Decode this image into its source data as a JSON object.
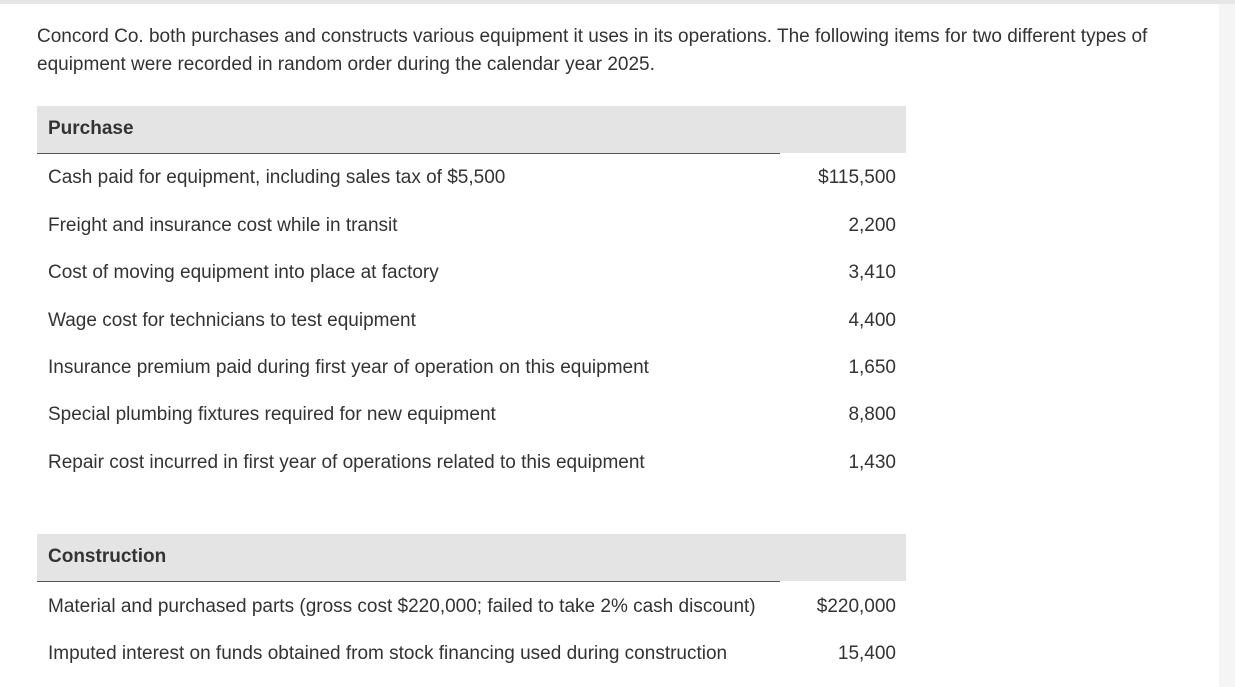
{
  "intro_text": "Concord Co. both purchases and constructs various equipment it uses in its operations. The following items for two different types of equipment were recorded in random order during the calendar year 2025.",
  "sections": [
    {
      "title": "Purchase",
      "items": [
        {
          "label": "Cash paid for equipment, including sales tax of $5,500",
          "amount": "$115,500"
        },
        {
          "label": "Freight and insurance cost while in transit",
          "amount": "2,200"
        },
        {
          "label": "Cost of moving equipment into place at factory",
          "amount": "3,410"
        },
        {
          "label": "Wage cost for technicians to test equipment",
          "amount": "4,400"
        },
        {
          "label": "Insurance premium paid during first year of operation on this equipment",
          "amount": "1,650"
        },
        {
          "label": "Special plumbing fixtures required for new equipment",
          "amount": "8,800"
        },
        {
          "label": "Repair cost incurred in first year of operations related to this equipment",
          "amount": "1,430"
        }
      ]
    },
    {
      "title": "Construction",
      "items": [
        {
          "label": "Material and purchased parts (gross cost $220,000; failed to take 2% cash discount)",
          "amount": "$220,000"
        },
        {
          "label": "Imputed interest on funds obtained from stock financing used during construction",
          "amount": "15,400"
        }
      ]
    }
  ]
}
